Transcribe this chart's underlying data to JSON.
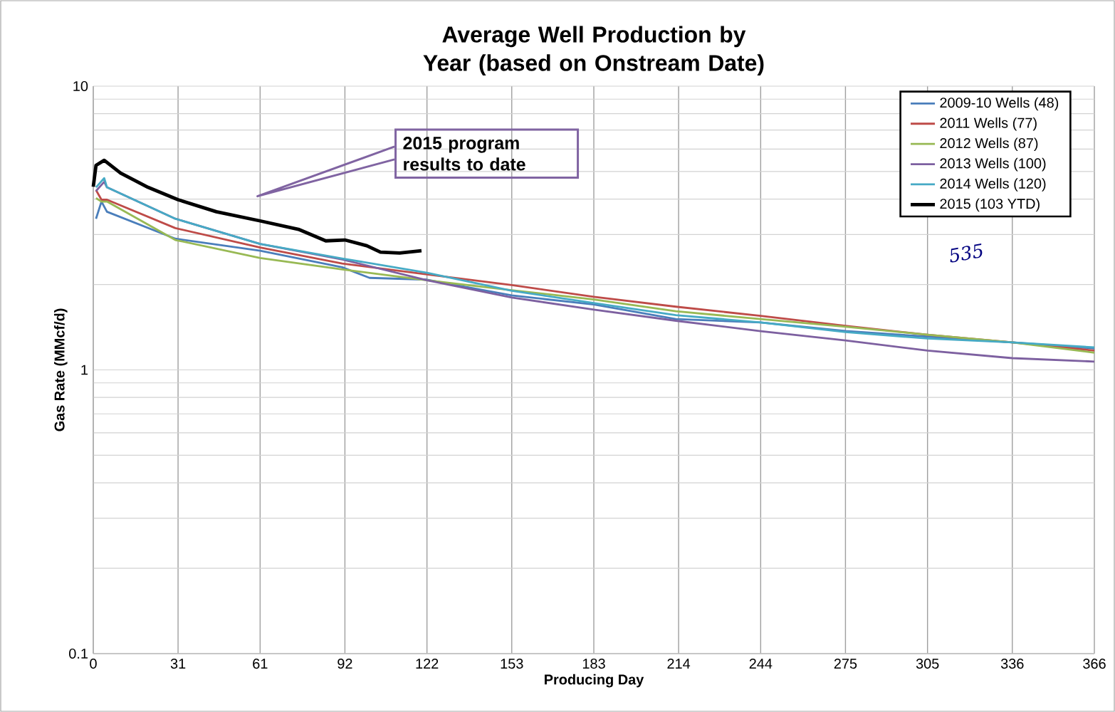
{
  "chart_data": {
    "type": "line",
    "title": "Average Well Production by Year (based on Onstream Date)",
    "xlabel": "Producing Day",
    "ylabel": "Gas Rate (MMcf/d)",
    "log": "y",
    "grid": true,
    "legend": "top right",
    "marker": "none",
    "line_style": "solid",
    "xlim": [
      0,
      366
    ],
    "xticks": [
      0,
      31,
      61,
      92,
      122,
      153,
      183,
      214,
      244,
      275,
      305,
      336,
      366
    ],
    "ylim": [
      0.1,
      10
    ],
    "yticks": [
      0.1,
      1,
      10
    ],
    "annotations": [
      "2015 program results to date",
      "535"
    ],
    "series": [
      {
        "name": "2009-10 Wells (48)",
        "color": "#4a7ebb",
        "x": [
          1,
          3,
          5,
          30,
          61,
          91,
          101,
          122,
          153,
          183,
          213,
          244,
          275,
          305,
          336,
          366
        ],
        "values": [
          3.41,
          3.92,
          3.61,
          2.9,
          2.63,
          2.3,
          2.11,
          2.08,
          1.83,
          1.7,
          1.51,
          1.47,
          1.37,
          1.31,
          1.25,
          1.19
        ]
      },
      {
        "name": "2011 Wells (77)",
        "color": "#be4b48",
        "x": [
          1,
          3,
          5,
          30,
          61,
          91,
          122,
          153,
          183,
          213,
          244,
          275,
          305,
          336,
          366
        ],
        "values": [
          4.3,
          3.98,
          3.98,
          3.16,
          2.7,
          2.37,
          2.17,
          1.99,
          1.81,
          1.67,
          1.55,
          1.43,
          1.33,
          1.25,
          1.17
        ]
      },
      {
        "name": "2012 Wells (87)",
        "color": "#98b954",
        "x": [
          1,
          3,
          5,
          30,
          61,
          91,
          122,
          153,
          183,
          213,
          244,
          275,
          305,
          336,
          366
        ],
        "values": [
          4.03,
          3.92,
          3.92,
          2.87,
          2.48,
          2.26,
          2.07,
          1.91,
          1.77,
          1.61,
          1.51,
          1.42,
          1.33,
          1.25,
          1.15
        ]
      },
      {
        "name": "2013 Wells (100)",
        "color": "#7d60a0",
        "x": [
          1,
          4,
          5,
          30,
          61,
          91,
          122,
          153,
          183,
          213,
          244,
          275,
          305,
          336,
          366
        ],
        "values": [
          4.27,
          4.6,
          4.4,
          3.41,
          2.78,
          2.45,
          2.07,
          1.8,
          1.63,
          1.49,
          1.37,
          1.27,
          1.17,
          1.1,
          1.07
        ]
      },
      {
        "name": "2014 Wells (120)",
        "color": "#46aac5",
        "x": [
          1,
          4,
          5,
          30,
          61,
          91,
          122,
          153,
          183,
          213,
          244,
          275,
          305,
          336,
          366
        ],
        "values": [
          4.4,
          4.74,
          4.4,
          3.41,
          2.78,
          2.47,
          2.2,
          1.9,
          1.72,
          1.56,
          1.47,
          1.36,
          1.29,
          1.25,
          1.2
        ]
      },
      {
        "name": "2015 (103 YTD)",
        "color": "#000000",
        "x": [
          0,
          1,
          4,
          10,
          20,
          31,
          45,
          61,
          75,
          85,
          92,
          100,
          105,
          112,
          120
        ],
        "values": [
          4.42,
          5.26,
          5.48,
          4.94,
          4.4,
          3.98,
          3.61,
          3.35,
          3.13,
          2.85,
          2.87,
          2.74,
          2.6,
          2.58,
          2.63
        ]
      }
    ]
  }
}
